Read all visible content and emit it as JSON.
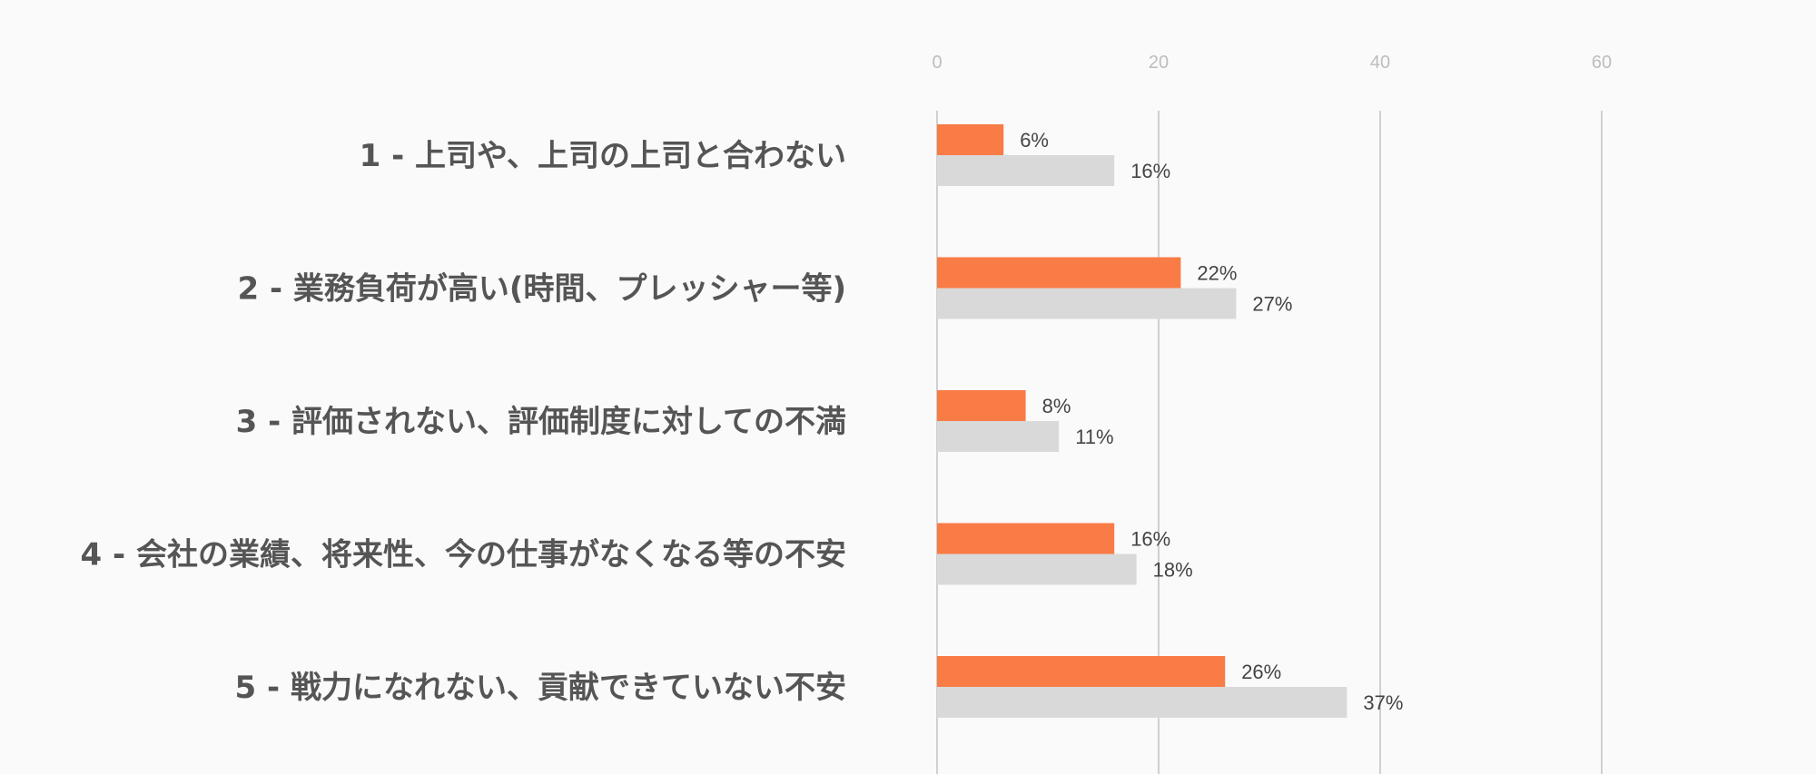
{
  "chart_data": {
    "type": "bar",
    "orientation": "horizontal",
    "categories": [
      "1 - 上司や、上司の上司と合わない",
      "2 - 業務負荷が高い(時間、プレッシャー等)",
      "3 - 評価されない、評価制度に対しての不満",
      "4 - 会社の業績、将来性、今の仕事がなくなる等の不安",
      "5 - 戦力になれない、貢献できていない不安"
    ],
    "series": [
      {
        "values": [
          6,
          22,
          8,
          16,
          26
        ],
        "labels": [
          "6%",
          "22%",
          "8%",
          "16%",
          "26%"
        ],
        "color": "#f97b45"
      },
      {
        "values": [
          16,
          27,
          11,
          18,
          37
        ],
        "labels": [
          "16%",
          "27%",
          "11%",
          "18%",
          "37%"
        ],
        "color": "#d9d9d9"
      }
    ],
    "x_ticks": [
      "0",
      "20",
      "40",
      "60"
    ],
    "xlim": [
      0,
      80
    ],
    "grid": true,
    "title": "",
    "xlabel": "",
    "ylabel": "",
    "legend": "none",
    "gridline_color": "#d0d0d0"
  }
}
